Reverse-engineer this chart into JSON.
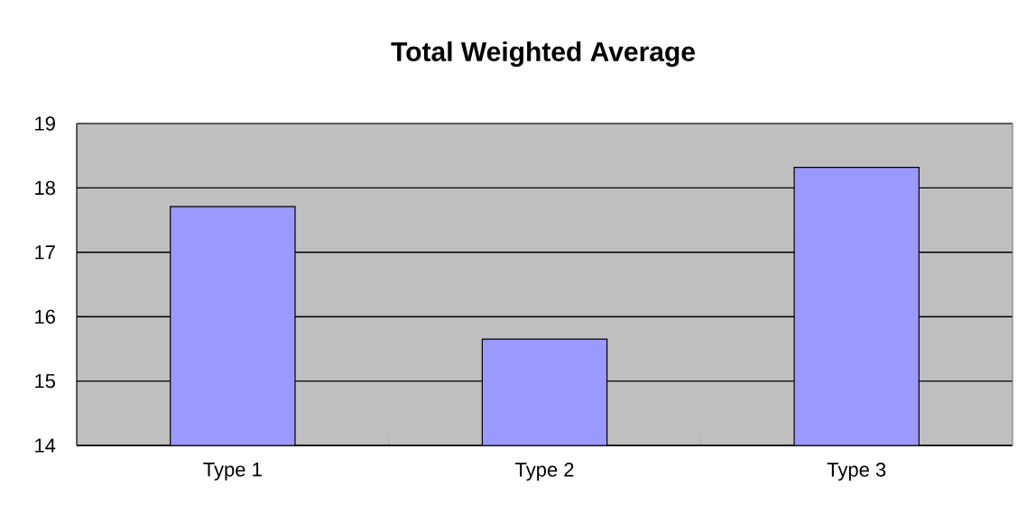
{
  "chart_data": {
    "type": "bar",
    "title": "Total Weighted Average",
    "categories": [
      "Type 1",
      "Type 2",
      "Type 3"
    ],
    "values": [
      17.71,
      15.65,
      18.32
    ],
    "color": "#9999ff",
    "ylim": [
      14,
      19
    ],
    "yticks": [
      14,
      15,
      16,
      17,
      18,
      19
    ],
    "grid": "y"
  }
}
